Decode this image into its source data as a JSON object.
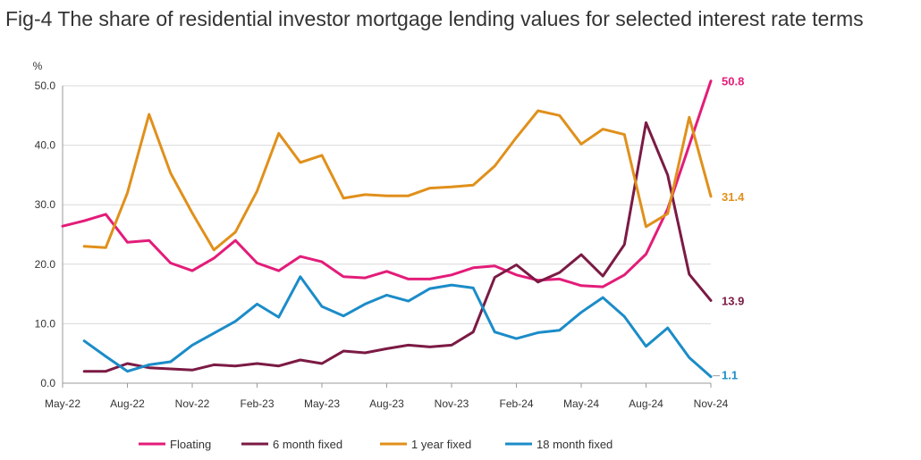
{
  "chart_data": {
    "type": "line",
    "title": "Fig-4 The share of residential investor mortgage lending values for selected interest rate terms",
    "ylabel": "%",
    "xlabel": "",
    "ylim": [
      0,
      50
    ],
    "yticks": [
      "0.0",
      "10.0",
      "20.0",
      "30.0",
      "40.0",
      "50.0"
    ],
    "ytick_values": [
      0,
      10,
      20,
      30,
      40,
      50
    ],
    "x": [
      "May-22",
      "Jun-22",
      "Jul-22",
      "Aug-22",
      "Sep-22",
      "Oct-22",
      "Nov-22",
      "Dec-22",
      "Jan-23",
      "Feb-23",
      "Mar-23",
      "Apr-23",
      "May-23",
      "Jun-23",
      "Jul-23",
      "Aug-23",
      "Sep-23",
      "Oct-23",
      "Nov-23",
      "Dec-23",
      "Jan-24",
      "Feb-24",
      "Mar-24",
      "Apr-24",
      "May-24",
      "Jun-24",
      "Jul-24",
      "Aug-24",
      "Sep-24",
      "Oct-24",
      "Nov-24"
    ],
    "xtick_labels": [
      "May-22",
      "Aug-22",
      "Nov-22",
      "Feb-23",
      "May-23",
      "Aug-23",
      "Nov-23",
      "Feb-24",
      "May-24",
      "Aug-24",
      "Nov-24"
    ],
    "xtick_indices": [
      0,
      3,
      6,
      9,
      12,
      15,
      18,
      21,
      24,
      27,
      30
    ],
    "grid": true,
    "legend_position": "bottom",
    "series": [
      {
        "name": "Floating",
        "color": "#e31c79",
        "end_label": "50.8",
        "values": [
          26.4,
          27.3,
          28.4,
          23.7,
          24.0,
          20.2,
          18.9,
          21.0,
          24.0,
          20.2,
          18.9,
          21.3,
          20.4,
          17.9,
          17.7,
          18.8,
          17.5,
          17.5,
          18.2,
          19.4,
          19.7,
          18.2,
          17.3,
          17.5,
          16.4,
          16.2,
          18.2,
          21.7,
          29.3,
          40.0,
          50.8
        ]
      },
      {
        "name": "6 month fixed",
        "color": "#7b1a44",
        "end_label": "13.9",
        "values": [
          2.0,
          2.0,
          3.3,
          2.6,
          2.4,
          2.2,
          3.1,
          2.9,
          3.3,
          2.9,
          3.9,
          3.3,
          5.4,
          5.1,
          5.8,
          6.4,
          6.1,
          6.4,
          8.6,
          17.8,
          19.9,
          17.0,
          18.6,
          21.6,
          18.0,
          23.3,
          43.8,
          35.0,
          18.3,
          13.9,
          null
        ],
        "offset": 1
      },
      {
        "name": "1 year fixed",
        "color": "#e0901b",
        "end_label": "31.4",
        "values": [
          23.0,
          22.8,
          32.0,
          45.2,
          35.3,
          28.6,
          22.4,
          25.4,
          32.3,
          42.0,
          37.1,
          38.3,
          31.1,
          31.7,
          31.5,
          31.5,
          32.8,
          33.0,
          33.3,
          36.5,
          41.3,
          45.8,
          45.0,
          40.2,
          42.7,
          41.8,
          26.3,
          28.5,
          44.7,
          31.4,
          null
        ],
        "offset": 1
      },
      {
        "name": "18 month fixed",
        "color": "#1b8cc8",
        "end_label": "1.1",
        "values": [
          7.1,
          4.5,
          2.0,
          3.1,
          3.6,
          6.4,
          8.4,
          10.4,
          13.3,
          11.1,
          17.9,
          12.9,
          11.3,
          13.3,
          14.8,
          13.8,
          15.9,
          16.5,
          16.0,
          8.6,
          7.5,
          8.5,
          8.9,
          11.9,
          14.4,
          11.2,
          6.2,
          9.3,
          4.3,
          1.1,
          null
        ],
        "offset": 1
      }
    ]
  }
}
